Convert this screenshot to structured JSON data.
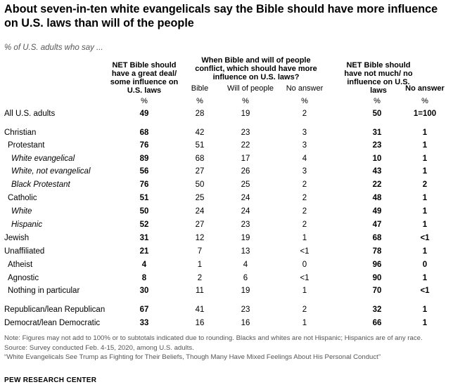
{
  "title": "About seven-in-ten white evangelicals say the Bible should have more influence on U.S. laws than will of the people",
  "subtitle": "% of U.S. adults who say ...",
  "headers": {
    "net_more": "NET Bible should have a great deal/ some influence on U.S. laws",
    "conflict_group": "When Bible and will of people conflict, which should have more influence on U.S. laws?",
    "bible": "Bible",
    "will": "Will of people",
    "no_answer_sub": "No answer",
    "net_less": "NET Bible should have not much/ no influence on U.S. laws",
    "no_answer": "No answer",
    "pct": "%"
  },
  "chart_data": {
    "type": "table",
    "columns": [
      "NET Bible should have a great deal/ some influence on U.S. laws",
      "Bible",
      "Will of people",
      "No answer",
      "NET Bible should have not much/ no influence on U.S. laws",
      "No answer"
    ],
    "rows": [
      {
        "label": "All U.S. adults",
        "values": [
          "49",
          "28",
          "19",
          "2",
          "50",
          "1=100"
        ],
        "indent": 0,
        "italic": false
      },
      {
        "label": "Christian",
        "values": [
          "68",
          "42",
          "23",
          "3",
          "31",
          "1"
        ],
        "indent": 0,
        "italic": false
      },
      {
        "label": "Protestant",
        "values": [
          "76",
          "51",
          "22",
          "3",
          "23",
          "1"
        ],
        "indent": 1,
        "italic": false
      },
      {
        "label": "White evangelical",
        "values": [
          "89",
          "68",
          "17",
          "4",
          "10",
          "1"
        ],
        "indent": 2,
        "italic": true
      },
      {
        "label": "White, not evangelical",
        "values": [
          "56",
          "27",
          "26",
          "3",
          "43",
          "1"
        ],
        "indent": 2,
        "italic": true
      },
      {
        "label": "Black Protestant",
        "values": [
          "76",
          "50",
          "25",
          "2",
          "22",
          "2"
        ],
        "indent": 2,
        "italic": true
      },
      {
        "label": "Catholic",
        "values": [
          "51",
          "25",
          "24",
          "2",
          "48",
          "1"
        ],
        "indent": 1,
        "italic": false
      },
      {
        "label": "White",
        "values": [
          "50",
          "24",
          "24",
          "2",
          "49",
          "1"
        ],
        "indent": 2,
        "italic": true
      },
      {
        "label": "Hispanic",
        "values": [
          "52",
          "27",
          "23",
          "2",
          "47",
          "1"
        ],
        "indent": 2,
        "italic": true
      },
      {
        "label": "Jewish",
        "values": [
          "31",
          "12",
          "19",
          "1",
          "68",
          "<1"
        ],
        "indent": 0,
        "italic": false
      },
      {
        "label": "Unaffiliated",
        "values": [
          "21",
          "7",
          "13",
          "<1",
          "78",
          "1"
        ],
        "indent": 0,
        "italic": false
      },
      {
        "label": "Atheist",
        "values": [
          "4",
          "1",
          "4",
          "0",
          "96",
          "0"
        ],
        "indent": 1,
        "italic": false
      },
      {
        "label": "Agnostic",
        "values": [
          "8",
          "2",
          "6",
          "<1",
          "90",
          "1"
        ],
        "indent": 1,
        "italic": false
      },
      {
        "label": "Nothing in particular",
        "values": [
          "30",
          "11",
          "19",
          "1",
          "70",
          "<1"
        ],
        "indent": 1,
        "italic": false
      },
      {
        "label": "Republican/lean Republican",
        "values": [
          "67",
          "41",
          "23",
          "2",
          "32",
          "1"
        ],
        "indent": 0,
        "italic": false
      },
      {
        "label": "Democrat/lean Democratic",
        "values": [
          "33",
          "16",
          "16",
          "1",
          "66",
          "1"
        ],
        "indent": 0,
        "italic": false
      }
    ]
  },
  "footer": {
    "note": "Note: Figures may not add to 100% or to subtotals indicated due to rounding. Blacks and whites are not Hispanic; Hispanics are of any race.",
    "source": "Source: Survey conducted Feb. 4-15, 2020, among U.S. adults.",
    "report": "“White Evangelicals See Trump as Fighting for Their Beliefs, Though Many Have Mixed Feelings About His Personal Conduct”",
    "brand": "PEW RESEARCH CENTER"
  }
}
